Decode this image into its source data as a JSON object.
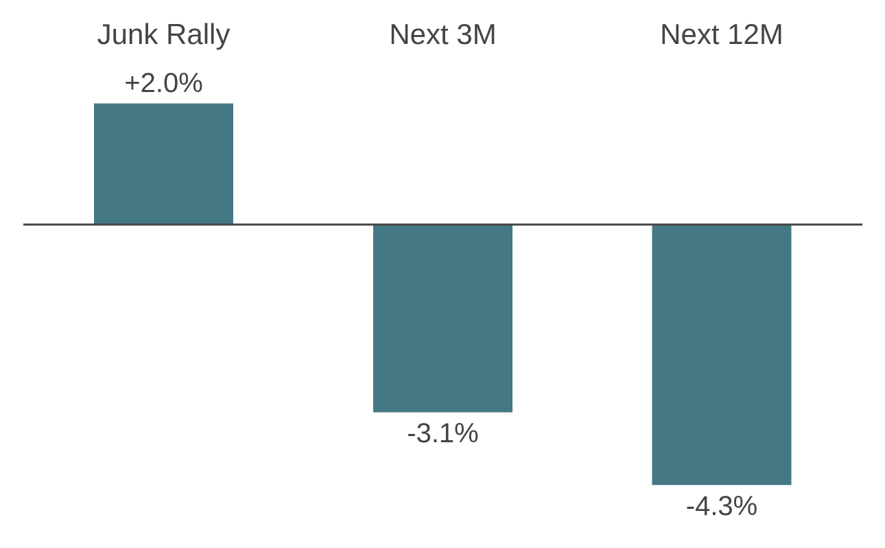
{
  "chart_data": {
    "type": "bar",
    "categories": [
      "Junk Rally",
      "Next 3M",
      "Next 12M"
    ],
    "values": [
      2.0,
      -3.1,
      -4.3
    ],
    "data_labels": [
      "+2.0%",
      "-3.1%",
      "-4.3%"
    ],
    "title": "",
    "xlabel": "",
    "ylabel": "",
    "ylim": [
      -4.3,
      2.0
    ],
    "grid": false,
    "legend": "none",
    "category_label_position": "top",
    "colors": {
      "bar": "#447884",
      "axis": "#444444",
      "text": "#444444"
    }
  }
}
